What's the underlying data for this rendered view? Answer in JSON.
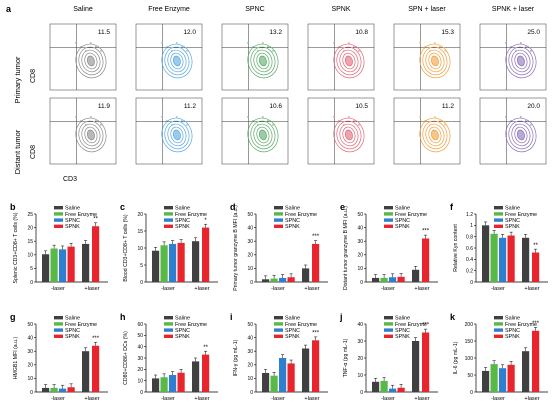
{
  "panel_a": {
    "letter": "a",
    "groups": [
      "Saline",
      "Free Enzyme",
      "SPNC",
      "SPNK",
      "SPN + laser",
      "SPNK + laser"
    ],
    "row_labels": [
      "Primary tumor",
      "Distant tumor"
    ],
    "y_marker": "CD8",
    "x_marker": "CD3",
    "primary_values": [
      "11.5",
      "12.0",
      "13.2",
      "10.8",
      "15.3",
      "25.0"
    ],
    "distant_values": [
      "11.9",
      "11.2",
      "10.6",
      "10.5",
      "11.2",
      "20.0"
    ],
    "contour_colors": [
      "#8a8a8a",
      "#58a8e0",
      "#5aaa6a",
      "#e06878",
      "#f0a040",
      "#8a70b8"
    ]
  },
  "legend_labels": [
    "Saline",
    "Free Enzyme",
    "SPNC",
    "SPNK"
  ],
  "colors": {
    "saline": "#404040",
    "free_enzyme": "#58b848",
    "spnc": "#2e7fd0",
    "spnk": "#e8242c"
  },
  "x_group_labels": [
    "-laser",
    "+laser"
  ],
  "chart_data": [
    {
      "panel": "b",
      "type": "bar",
      "ylabel": "Splenic CD3+CD8+ T cells (%)",
      "ylim": [
        0,
        25
      ],
      "yticks": [
        0,
        5,
        10,
        15,
        20,
        25
      ],
      "series": [
        {
          "name": "Saline",
          "values": [
            10.2
          ]
        },
        {
          "name": "Free Enzyme",
          "values": [
            12.3
          ]
        },
        {
          "name": "SPNC",
          "values": [
            12.0
          ]
        },
        {
          "name": "SPNK",
          "values": [
            13.0
          ]
        },
        {
          "name": "Saline",
          "values": [
            14.0
          ]
        },
        {
          "name": "SPNK",
          "values": [
            20.5
          ]
        }
      ],
      "sig": [
        {
          "bar": 5,
          "text": "**"
        }
      ]
    },
    {
      "panel": "c",
      "type": "bar",
      "ylabel": "Blood CD3+CD8+ T cells (%)",
      "ylim": [
        0,
        20
      ],
      "yticks": [
        0,
        5,
        10,
        15,
        20
      ],
      "series": [
        {
          "name": "Saline",
          "values": [
            9.2
          ]
        },
        {
          "name": "Free Enzyme",
          "values": [
            10.8
          ]
        },
        {
          "name": "SPNC",
          "values": [
            11.2
          ]
        },
        {
          "name": "SPNK",
          "values": [
            11.5
          ]
        },
        {
          "name": "Saline",
          "values": [
            12.0
          ]
        },
        {
          "name": "SPNK",
          "values": [
            16.0
          ]
        }
      ],
      "sig": [
        {
          "bar": 5,
          "text": "*"
        }
      ]
    },
    {
      "panel": "d",
      "type": "bar",
      "ylabel": "Primary tumor granzyme B MFI (a.u.)",
      "ylim": [
        0,
        50
      ],
      "yticks": [
        0,
        10,
        20,
        30,
        40,
        50
      ],
      "series": [
        {
          "name": "Saline",
          "values": [
            2.0
          ]
        },
        {
          "name": "Free Enzyme",
          "values": [
            2.5
          ]
        },
        {
          "name": "SPNC",
          "values": [
            3.0
          ]
        },
        {
          "name": "SPNK",
          "values": [
            3.5
          ]
        },
        {
          "name": "Saline",
          "values": [
            10.0
          ]
        },
        {
          "name": "SPNK",
          "values": [
            28.0
          ]
        }
      ],
      "sig": [
        {
          "bar": 5,
          "text": "***"
        }
      ]
    },
    {
      "panel": "e",
      "type": "bar",
      "ylabel": "Distant tumor granzyme B MFI (a.u.)",
      "ylim": [
        0,
        50
      ],
      "yticks": [
        0,
        10,
        20,
        30,
        40,
        50
      ],
      "series": [
        {
          "name": "Saline",
          "values": [
            3.0
          ]
        },
        {
          "name": "Free Enzyme",
          "values": [
            3.0
          ]
        },
        {
          "name": "SPNC",
          "values": [
            3.5
          ]
        },
        {
          "name": "SPNK",
          "values": [
            3.8
          ]
        },
        {
          "name": "Saline",
          "values": [
            9.0
          ]
        },
        {
          "name": "SPNK",
          "values": [
            32.0
          ]
        }
      ],
      "sig": [
        {
          "bar": 5,
          "text": "***"
        }
      ]
    },
    {
      "panel": "f",
      "type": "bar",
      "ylabel": "Relative Kyn content",
      "ylim": [
        0,
        1.2
      ],
      "yticks": [
        0,
        0.2,
        0.4,
        0.6,
        0.8,
        1.0,
        1.2
      ],
      "series": [
        {
          "name": "Saline",
          "values": [
            1.0
          ]
        },
        {
          "name": "Free Enzyme",
          "values": [
            0.85
          ]
        },
        {
          "name": "SPNC",
          "values": [
            0.78
          ]
        },
        {
          "name": "SPNK",
          "values": [
            0.82
          ]
        },
        {
          "name": "Saline",
          "values": [
            0.78
          ]
        },
        {
          "name": "SPNK",
          "values": [
            0.52
          ]
        }
      ],
      "sig": [
        {
          "bar": 5,
          "text": "**"
        }
      ]
    },
    {
      "panel": "g",
      "type": "bar",
      "ylabel": "HMGB1 MFI (a.u.)",
      "ylim": [
        0,
        50
      ],
      "yticks": [
        0,
        10,
        20,
        30,
        40,
        50
      ],
      "series": [
        {
          "name": "Saline",
          "values": [
            3.0
          ]
        },
        {
          "name": "Free Enzyme",
          "values": [
            3.0
          ]
        },
        {
          "name": "SPNC",
          "values": [
            2.5
          ]
        },
        {
          "name": "SPNK",
          "values": [
            3.5
          ]
        },
        {
          "name": "Saline",
          "values": [
            30.0
          ]
        },
        {
          "name": "SPNK",
          "values": [
            34.0
          ]
        }
      ],
      "sig": [
        {
          "bar": 5,
          "text": "***"
        }
      ]
    },
    {
      "panel": "h",
      "type": "bar",
      "ylabel": "CD80+CD86+ DCs (%)",
      "ylim": [
        0,
        60
      ],
      "yticks": [
        0,
        10,
        20,
        30,
        40,
        50,
        60
      ],
      "series": [
        {
          "name": "Saline",
          "values": [
            12.0
          ]
        },
        {
          "name": "Free Enzyme",
          "values": [
            13.0
          ]
        },
        {
          "name": "SPNC",
          "values": [
            15.0
          ]
        },
        {
          "name": "SPNK",
          "values": [
            17.0
          ]
        },
        {
          "name": "Saline",
          "values": [
            27.0
          ]
        },
        {
          "name": "SPNK",
          "values": [
            33.0
          ]
        }
      ],
      "sig": [
        {
          "bar": 5,
          "text": "**"
        }
      ]
    },
    {
      "panel": "i",
      "type": "bar",
      "ylabel": "IFN-γ (pg mL-1)",
      "ylim": [
        0,
        50
      ],
      "yticks": [
        0,
        10,
        20,
        30,
        40,
        50
      ],
      "series": [
        {
          "name": "Saline",
          "values": [
            14.0
          ]
        },
        {
          "name": "Free Enzyme",
          "values": [
            12.0
          ]
        },
        {
          "name": "SPNC",
          "values": [
            25.0
          ]
        },
        {
          "name": "SPNK",
          "values": [
            21.0
          ]
        },
        {
          "name": "Saline",
          "values": [
            32.0
          ]
        },
        {
          "name": "SPNK",
          "values": [
            38.0
          ]
        }
      ],
      "sig": [
        {
          "bar": 5,
          "text": "***"
        }
      ]
    },
    {
      "panel": "j",
      "type": "bar",
      "ylabel": "TNF-α (pg mL-1)",
      "ylim": [
        0,
        40
      ],
      "yticks": [
        0,
        10,
        20,
        30,
        40
      ],
      "series": [
        {
          "name": "Saline",
          "values": [
            6.0
          ]
        },
        {
          "name": "Free Enzyme",
          "values": [
            6.5
          ]
        },
        {
          "name": "SPNC",
          "values": [
            2.0
          ]
        },
        {
          "name": "SPNK",
          "values": [
            2.5
          ]
        },
        {
          "name": "Saline",
          "values": [
            30.0
          ]
        },
        {
          "name": "SPNK",
          "values": [
            35.0
          ]
        }
      ],
      "sig": [
        {
          "bar": 5,
          "text": "***"
        }
      ]
    },
    {
      "panel": "k",
      "type": "bar",
      "ylabel": "IL-6 (pg mL-1)",
      "ylim": [
        0,
        200
      ],
      "yticks": [
        0,
        50,
        100,
        150,
        200
      ],
      "series": [
        {
          "name": "Saline",
          "values": [
            62.0
          ]
        },
        {
          "name": "Free Enzyme",
          "values": [
            82.0
          ]
        },
        {
          "name": "SPNC",
          "values": [
            70.0
          ]
        },
        {
          "name": "SPNK",
          "values": [
            80.0
          ]
        },
        {
          "name": "Saline",
          "values": [
            120.0
          ]
        },
        {
          "name": "SPNK",
          "values": [
            180.0
          ]
        }
      ],
      "sig": [
        {
          "bar": 5,
          "text": "***"
        }
      ]
    }
  ]
}
